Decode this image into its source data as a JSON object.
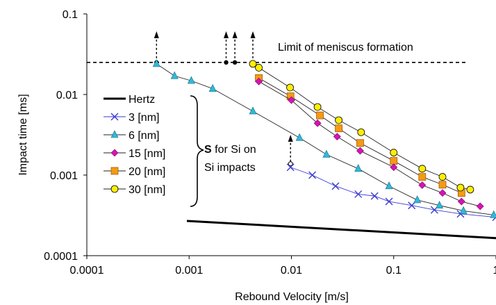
{
  "chart_data": {
    "type": "scatter",
    "xscale": "log",
    "yscale": "log",
    "xlim": [
      0.0001,
      1
    ],
    "ylim": [
      0.0001,
      0.1
    ],
    "xlabel": "Rebound Velocity [m/s]",
    "ylabel": "Impact time [ms]",
    "x_ticks": [
      {
        "value": 0.0001,
        "label": "0.0001"
      },
      {
        "value": 0.001,
        "label": "0.001"
      },
      {
        "value": 0.01,
        "label": "0.01"
      },
      {
        "value": 0.1,
        "label": "0.1"
      },
      {
        "value": 1,
        "label": "1"
      }
    ],
    "y_ticks": [
      {
        "value": 0.0001,
        "label": "0.0001"
      },
      {
        "value": 0.001,
        "label": "0.001"
      },
      {
        "value": 0.01,
        "label": "0.01"
      },
      {
        "value": 0.1,
        "label": "0.1"
      }
    ],
    "grid": false,
    "legend_position": "left",
    "annotations": {
      "meniscus_limit": {
        "label": "Limit of meniscus formation",
        "y": 0.025
      },
      "group_label_1a": "S",
      "group_label_1b": " for Si on",
      "group_label_2": "Si impacts"
    },
    "series": [
      {
        "name": "Hertz",
        "marker": "line",
        "color": "#000000",
        "x": [
          0.00095,
          1.0
        ],
        "y": [
          0.00027,
          0.000165
        ]
      },
      {
        "name": "3 [nm]",
        "marker": "x",
        "color": "#3a3ad0",
        "x": [
          0.0098,
          0.016,
          0.027,
          0.045,
          0.065,
          0.09,
          0.15,
          0.25,
          0.45,
          1.0
        ],
        "y": [
          0.00125,
          0.001,
          0.00073,
          0.00058,
          0.00055,
          0.00047,
          0.00042,
          0.00037,
          0.00033,
          0.0003
        ]
      },
      {
        "name": "6 [nm]",
        "marker": "triangle",
        "color": "#30b8d8",
        "x": [
          0.00048,
          0.00072,
          0.00105,
          0.0017,
          0.0042,
          0.012,
          0.022,
          0.045,
          0.09,
          0.17,
          0.28,
          0.48,
          0.95
        ],
        "y": [
          0.024,
          0.017,
          0.0148,
          0.0118,
          0.0062,
          0.0029,
          0.0018,
          0.0012,
          0.00073,
          0.00049,
          0.00042,
          0.00036,
          0.00032
        ]
      },
      {
        "name": "15 [nm]",
        "marker": "diamond",
        "color": "#d414b4",
        "x": [
          0.0048,
          0.01,
          0.018,
          0.028,
          0.047,
          0.1,
          0.19,
          0.3,
          0.46,
          0.7
        ],
        "y": [
          0.0145,
          0.0085,
          0.0044,
          0.003,
          0.002,
          0.00125,
          0.00075,
          0.0006,
          0.00047,
          0.00041
        ]
      },
      {
        "name": "20 [nm]",
        "marker": "square",
        "color": "#f39a16",
        "x": [
          0.0048,
          0.0098,
          0.019,
          0.029,
          0.047,
          0.1,
          0.19,
          0.3,
          0.46
        ],
        "y": [
          0.016,
          0.0095,
          0.0055,
          0.0038,
          0.0025,
          0.0015,
          0.00095,
          0.00076,
          0.0006
        ]
      },
      {
        "name": "30 [nm]",
        "marker": "circle",
        "color": "#ffee00",
        "x": [
          0.0042,
          0.0048,
          0.0097,
          0.018,
          0.029,
          0.048,
          0.1,
          0.19,
          0.3,
          0.45,
          0.56
        ],
        "y": [
          0.024,
          0.0215,
          0.0122,
          0.007,
          0.0048,
          0.0034,
          0.0019,
          0.0012,
          0.00095,
          0.0007,
          0.00066
        ]
      }
    ]
  }
}
